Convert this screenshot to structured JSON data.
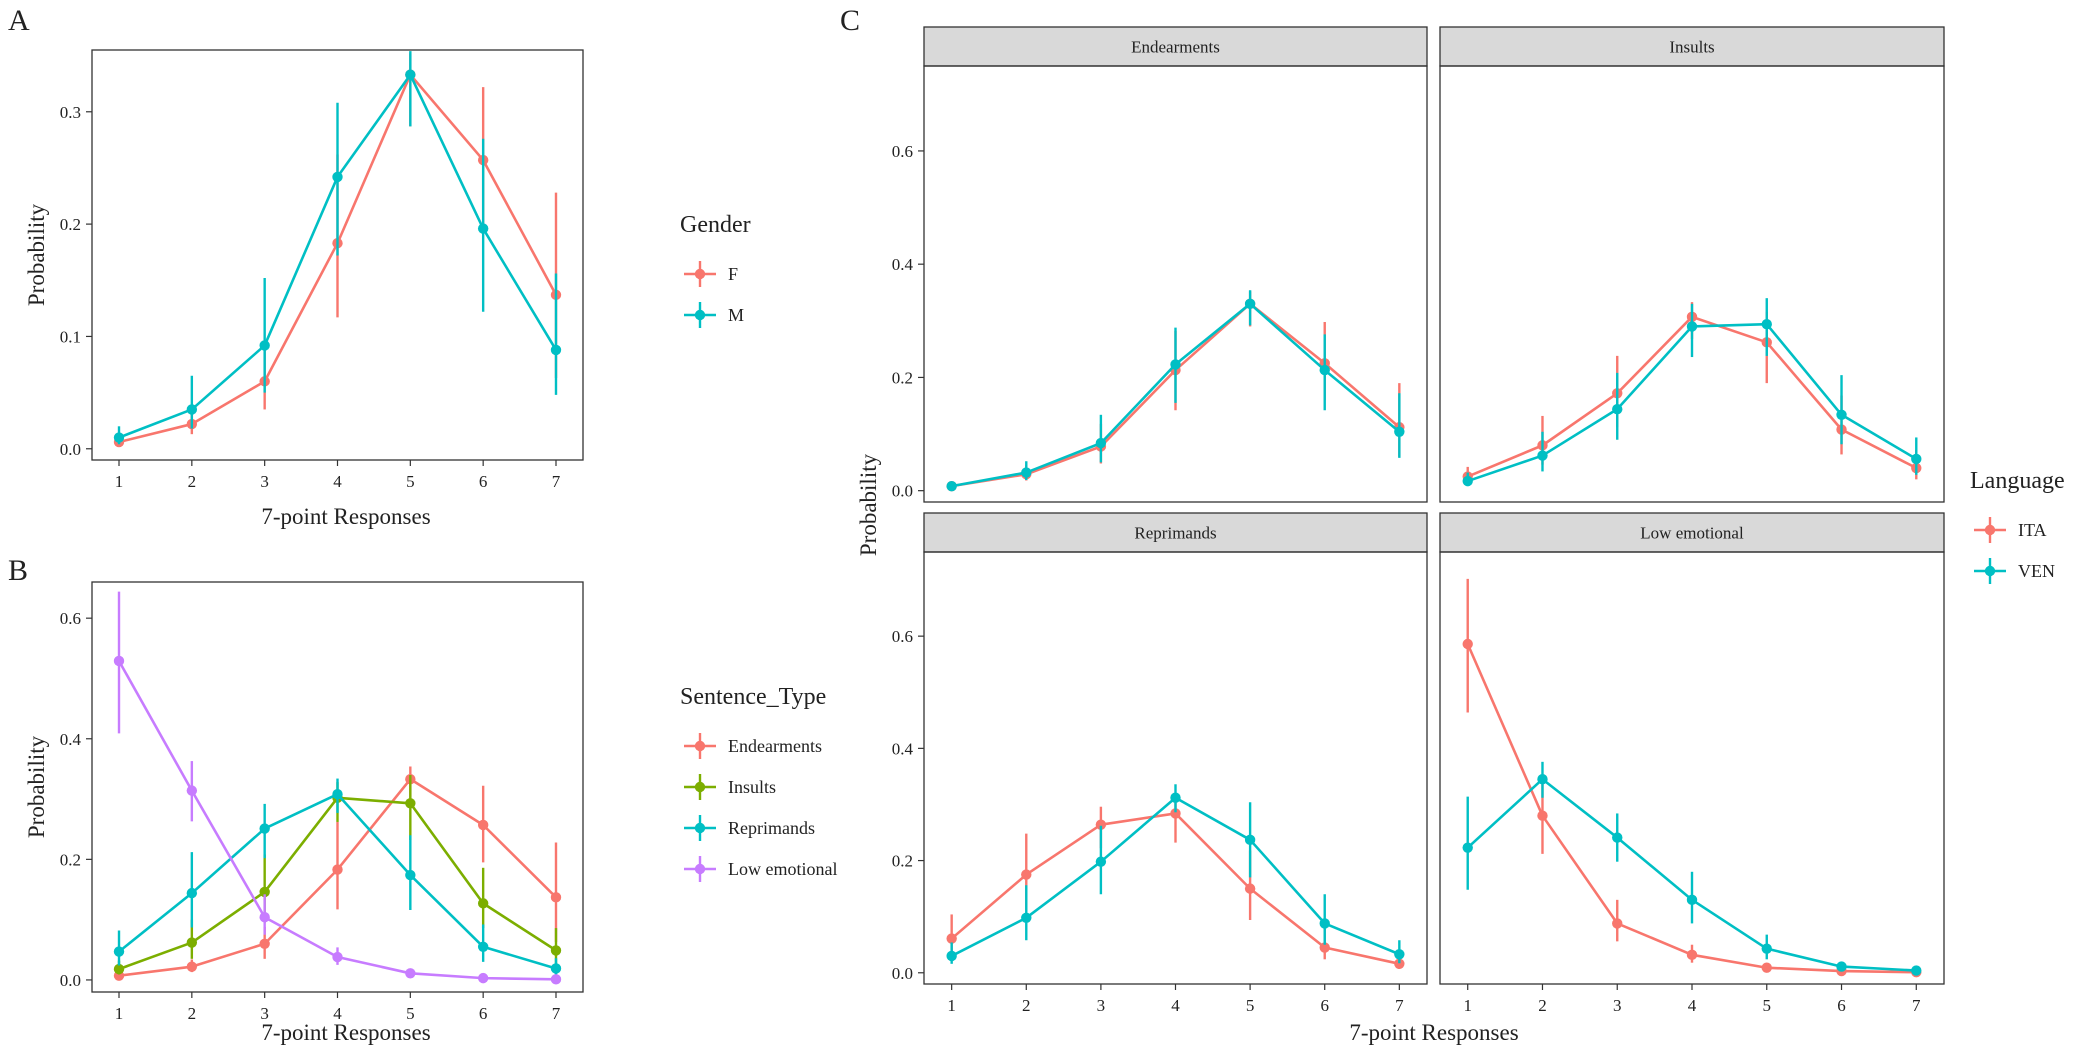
{
  "figure": {
    "panel_labels": [
      "A",
      "B",
      "C"
    ]
  },
  "chart_data": [
    {
      "id": "A",
      "type": "line",
      "subtype": "pointrange",
      "xlabel": "7-point Responses",
      "ylabel": "Probability",
      "x": [
        1,
        2,
        3,
        4,
        5,
        6,
        7
      ],
      "xticks": [
        1,
        2,
        3,
        4,
        5,
        6,
        7
      ],
      "ylim": [
        -0.01,
        0.355
      ],
      "yticks": [
        0.0,
        0.1,
        0.2,
        0.3
      ],
      "ytick_labels": [
        "0.0",
        "0.1",
        "0.2",
        "0.3"
      ],
      "grid": false,
      "legend": {
        "title": "Gender",
        "position": "right"
      },
      "series": [
        {
          "name": "F",
          "color": "#F8766D",
          "values": [
            0.006,
            0.022,
            0.06,
            0.183,
            0.333,
            0.257,
            0.137
          ],
          "lower": [
            0.003,
            0.013,
            0.035,
            0.117,
            0.287,
            0.195,
            0.063
          ],
          "upper": [
            0.012,
            0.033,
            0.088,
            0.262,
            0.352,
            0.322,
            0.228
          ]
        },
        {
          "name": "M",
          "color": "#00BFC4",
          "values": [
            0.01,
            0.035,
            0.092,
            0.242,
            0.333,
            0.196,
            0.088
          ],
          "lower": [
            0.004,
            0.018,
            0.05,
            0.172,
            0.287,
            0.122,
            0.048
          ],
          "upper": [
            0.02,
            0.065,
            0.152,
            0.308,
            0.354,
            0.276,
            0.156
          ]
        }
      ]
    },
    {
      "id": "B",
      "type": "line",
      "subtype": "pointrange",
      "xlabel": "7-point Responses",
      "ylabel": "Probability",
      "x": [
        1,
        2,
        3,
        4,
        5,
        6,
        7
      ],
      "xticks": [
        1,
        2,
        3,
        4,
        5,
        6,
        7
      ],
      "ylim": [
        -0.02,
        0.66
      ],
      "yticks": [
        0.0,
        0.2,
        0.4,
        0.6
      ],
      "ytick_labels": [
        "0.0",
        "0.2",
        "0.4",
        "0.6"
      ],
      "grid": false,
      "legend": {
        "title": "Sentence_Type",
        "position": "right"
      },
      "series": [
        {
          "name": "Endearments",
          "color": "#F8766D",
          "values": [
            0.007,
            0.022,
            0.06,
            0.183,
            0.333,
            0.257,
            0.137
          ],
          "lower": [
            0.003,
            0.013,
            0.035,
            0.117,
            0.287,
            0.195,
            0.063
          ],
          "upper": [
            0.013,
            0.034,
            0.088,
            0.262,
            0.354,
            0.322,
            0.228
          ]
        },
        {
          "name": "Insults",
          "color": "#7CAE00",
          "values": [
            0.018,
            0.062,
            0.146,
            0.302,
            0.293,
            0.127,
            0.049
          ],
          "lower": [
            0.009,
            0.035,
            0.095,
            0.262,
            0.232,
            0.086,
            0.027
          ],
          "upper": [
            0.032,
            0.1,
            0.208,
            0.328,
            0.34,
            0.186,
            0.086
          ]
        },
        {
          "name": "Reprimands",
          "color": "#00BFC4",
          "values": [
            0.047,
            0.144,
            0.251,
            0.308,
            0.174,
            0.055,
            0.019
          ],
          "lower": [
            0.024,
            0.087,
            0.202,
            0.277,
            0.116,
            0.03,
            0.009
          ],
          "upper": [
            0.082,
            0.212,
            0.292,
            0.334,
            0.24,
            0.092,
            0.036
          ]
        },
        {
          "name": "Low emotional",
          "color": "#C77CFF",
          "values": [
            0.529,
            0.314,
            0.104,
            0.038,
            0.011,
            0.003,
            0.001
          ],
          "lower": [
            0.409,
            0.263,
            0.075,
            0.025,
            0.006,
            0.001,
            0.0003
          ],
          "upper": [
            0.644,
            0.363,
            0.142,
            0.054,
            0.019,
            0.006,
            0.003
          ]
        }
      ]
    },
    {
      "id": "C",
      "type": "line",
      "subtype": "pointrange-facets",
      "xlabel": "7-point Responses",
      "ylabel": "Probability",
      "x": [
        1,
        2,
        3,
        4,
        5,
        6,
        7
      ],
      "xticks": [
        1,
        2,
        3,
        4,
        5,
        6,
        7
      ],
      "ylim": [
        -0.02,
        0.75
      ],
      "yticks": [
        0.0,
        0.2,
        0.4,
        0.6
      ],
      "ytick_labels": [
        "0.0",
        "0.2",
        "0.4",
        "0.6"
      ],
      "grid": false,
      "legend": {
        "title": "Language",
        "position": "right"
      },
      "series_styles": [
        {
          "name": "ITA",
          "color": "#F8766D"
        },
        {
          "name": "VEN",
          "color": "#00BFC4"
        }
      ],
      "facets": [
        {
          "title": "Endearments",
          "series": [
            {
              "name": "ITA",
              "color": "#F8766D",
              "values": [
                0.008,
                0.029,
                0.078,
                0.213,
                0.33,
                0.225,
                0.112
              ],
              "lower": [
                0.004,
                0.018,
                0.048,
                0.142,
                0.29,
                0.16,
                0.06
              ],
              "upper": [
                0.014,
                0.045,
                0.118,
                0.282,
                0.352,
                0.298,
                0.19
              ]
            },
            {
              "name": "VEN",
              "color": "#00BFC4",
              "values": [
                0.008,
                0.032,
                0.084,
                0.223,
                0.33,
                0.213,
                0.104
              ],
              "lower": [
                0.004,
                0.019,
                0.05,
                0.155,
                0.292,
                0.142,
                0.058
              ],
              "upper": [
                0.015,
                0.052,
                0.134,
                0.288,
                0.354,
                0.276,
                0.172
              ]
            }
          ]
        },
        {
          "title": "Insults",
          "series": [
            {
              "name": "ITA",
              "color": "#F8766D",
              "values": [
                0.025,
                0.08,
                0.172,
                0.307,
                0.262,
                0.108,
                0.04
              ],
              "lower": [
                0.013,
                0.046,
                0.112,
                0.268,
                0.19,
                0.064,
                0.02
              ],
              "upper": [
                0.042,
                0.132,
                0.238,
                0.333,
                0.316,
                0.168,
                0.072
              ]
            },
            {
              "name": "VEN",
              "color": "#00BFC4",
              "values": [
                0.017,
                0.062,
                0.144,
                0.29,
                0.294,
                0.134,
                0.056
              ],
              "lower": [
                0.008,
                0.034,
                0.09,
                0.236,
                0.238,
                0.082,
                0.028
              ],
              "upper": [
                0.032,
                0.104,
                0.208,
                0.33,
                0.34,
                0.204,
                0.094
              ]
            }
          ]
        },
        {
          "title": "Reprimands",
          "series": [
            {
              "name": "ITA",
              "color": "#F8766D",
              "values": [
                0.061,
                0.175,
                0.264,
                0.284,
                0.15,
                0.045,
                0.016
              ],
              "lower": [
                0.03,
                0.112,
                0.222,
                0.232,
                0.094,
                0.024,
                0.007
              ],
              "upper": [
                0.104,
                0.248,
                0.296,
                0.316,
                0.218,
                0.078,
                0.032
              ]
            },
            {
              "name": "VEN",
              "color": "#00BFC4",
              "values": [
                0.03,
                0.098,
                0.198,
                0.312,
                0.237,
                0.088,
                0.033
              ],
              "lower": [
                0.016,
                0.058,
                0.14,
                0.286,
                0.17,
                0.05,
                0.017
              ],
              "upper": [
                0.054,
                0.156,
                0.262,
                0.336,
                0.304,
                0.14,
                0.058
              ]
            }
          ]
        },
        {
          "title": "Low emotional",
          "series": [
            {
              "name": "ITA",
              "color": "#F8766D",
              "values": [
                0.586,
                0.28,
                0.088,
                0.032,
                0.009,
                0.003,
                0.001
              ],
              "lower": [
                0.464,
                0.212,
                0.056,
                0.018,
                0.004,
                0.001,
                0.0003
              ],
              "upper": [
                0.702,
                0.34,
                0.13,
                0.05,
                0.016,
                0.006,
                0.003
              ]
            },
            {
              "name": "VEN",
              "color": "#00BFC4",
              "values": [
                0.223,
                0.345,
                0.241,
                0.13,
                0.043,
                0.011,
                0.004
              ],
              "lower": [
                0.148,
                0.312,
                0.198,
                0.088,
                0.024,
                0.005,
                0.002
              ],
              "upper": [
                0.314,
                0.376,
                0.284,
                0.18,
                0.068,
                0.02,
                0.009
              ]
            }
          ]
        }
      ]
    }
  ]
}
